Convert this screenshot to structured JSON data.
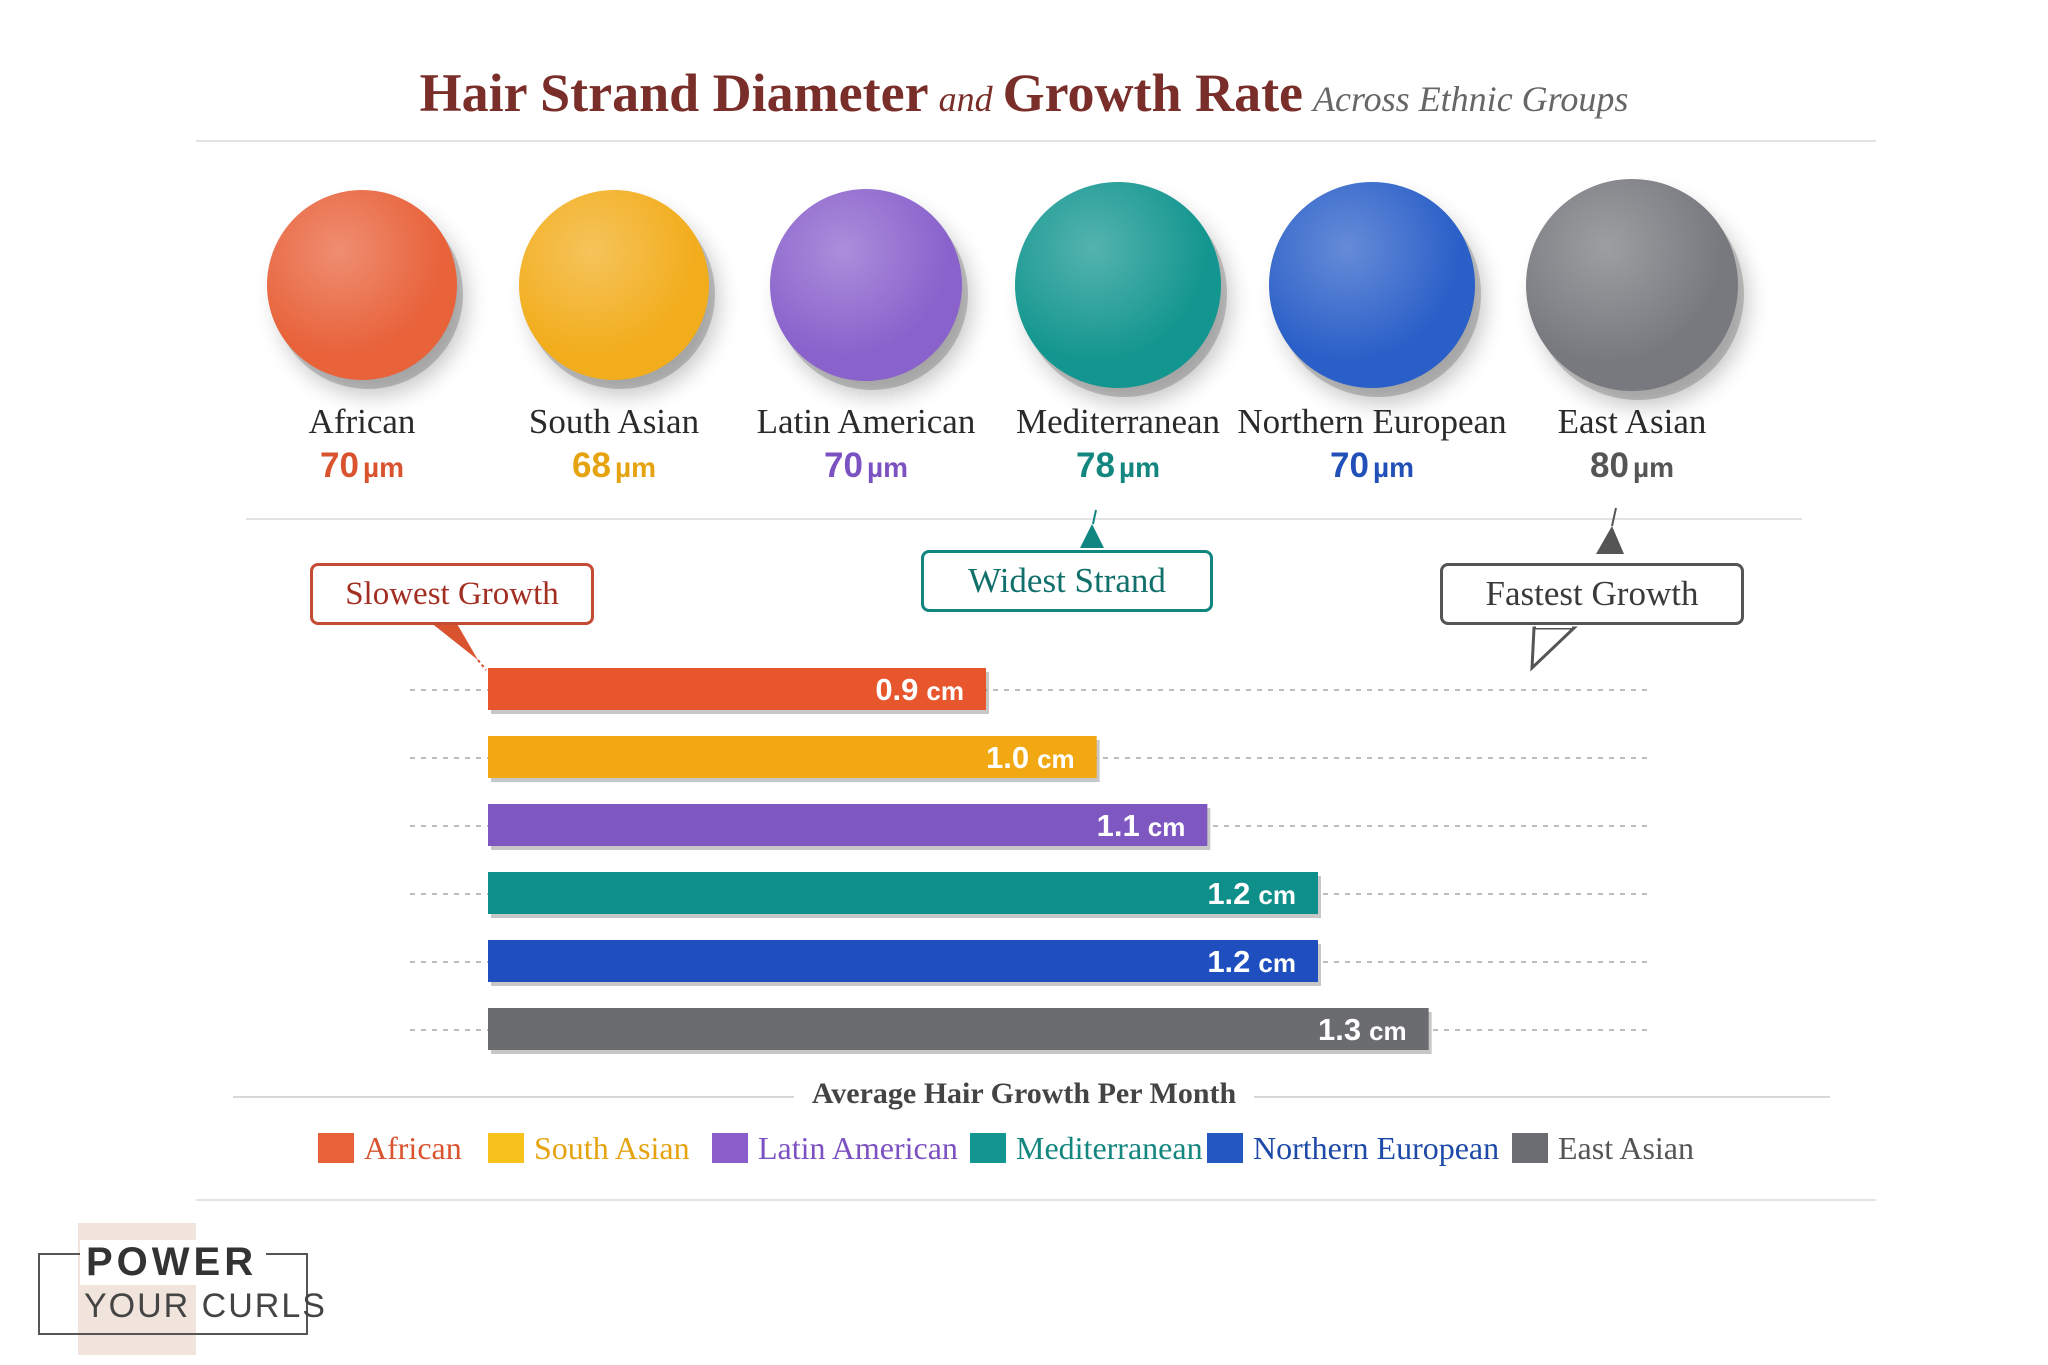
{
  "title": {
    "part1": "Hair Strand Diameter",
    "and": "and",
    "part2": "Growth Rate",
    "subtitle": "Across Ethnic Groups"
  },
  "colors": {
    "title": "#7a2e2a",
    "african": "#e8623a",
    "south_asian": "#f2ad1c",
    "latin_american": "#8158c2",
    "mediterranean": "#12968f",
    "northern_european": "#2457c2",
    "east_asian": "#6b6d72"
  },
  "groups": [
    {
      "name": "African",
      "diameter": "70",
      "unit": "µm",
      "color": "#e8623a",
      "text_color": "#d9532f"
    },
    {
      "name": "South Asian",
      "diameter": "68",
      "unit": "µm",
      "color": "#f2ad1c",
      "text_color": "#e6a310"
    },
    {
      "name": "Latin American",
      "diameter": "70",
      "unit": "µm",
      "color": "#8a62cc",
      "text_color": "#7c52c2"
    },
    {
      "name": "Mediterranean",
      "diameter": "78",
      "unit": "µm",
      "color": "#13968f",
      "text_color": "#13867f"
    },
    {
      "name": "Northern European",
      "diameter": "70",
      "unit": "µm",
      "color": "#2a5fc8",
      "text_color": "#2150b8"
    },
    {
      "name": "East Asian",
      "diameter": "80",
      "unit": "µm",
      "color": "#77797e",
      "text_color": "#555555"
    }
  ],
  "callouts": {
    "slowest": "Slowest Growth",
    "widest": "Widest Strand",
    "fastest": "Fastest Growth"
  },
  "chart_data": {
    "type": "bar",
    "orientation": "horizontal",
    "title": "Average Hair Growth Per Month",
    "categories": [
      "African",
      "South Asian",
      "Latin American",
      "Mediterranean",
      "Northern European",
      "East Asian"
    ],
    "values": [
      0.9,
      1.0,
      1.1,
      1.2,
      1.2,
      1.3
    ],
    "value_labels": [
      "0.9",
      "1.0",
      "1.1",
      "1.2",
      "1.2",
      "1.3"
    ],
    "unit": "cm",
    "xlim": [
      0.45,
      1.5
    ],
    "bar_colors": [
      "#e8562e",
      "#f2a812",
      "#7f57c0",
      "#0f8f89",
      "#1f4fbf",
      "#6a6c70"
    ],
    "legend": {
      "placement": "bottom",
      "entries": [
        {
          "label": "African",
          "color": "#e8623a",
          "text_color": "#d9532f"
        },
        {
          "label": "South Asian",
          "color": "#f7c21c",
          "text_color": "#e6a310"
        },
        {
          "label": "Latin American",
          "color": "#8a5fcc",
          "text_color": "#7c52c2"
        },
        {
          "label": "Mediterranean",
          "color": "#13968f",
          "text_color": "#13867f"
        },
        {
          "label": "Northern European",
          "color": "#2457c2",
          "text_color": "#1d4aa8"
        },
        {
          "label": "East Asian",
          "color": "#6b6d72",
          "text_color": "#555555"
        }
      ]
    },
    "grid": "dashed-row-guides"
  },
  "logo": {
    "line1": "POWER",
    "line2": "YOUR CURLS"
  }
}
